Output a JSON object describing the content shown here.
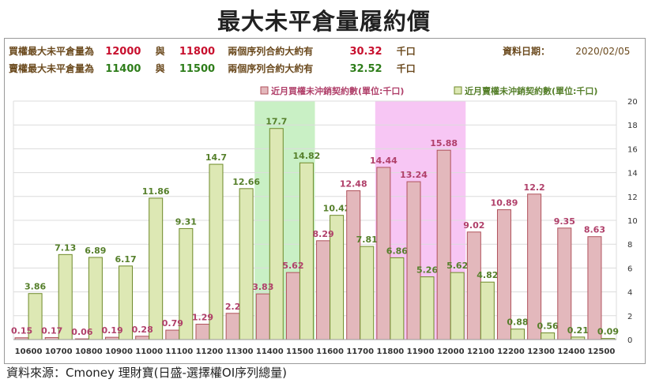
{
  "page": {
    "title": "最大未平倉量履約價",
    "source": "資料來源：Cmoney 理財寶(日盛-選擇權OI序列總量)"
  },
  "info": {
    "call_label": "買權最大未平倉量為",
    "call_strike_1": "12000",
    "call_and": "與",
    "call_strike_2": "11800",
    "call_desc": "兩個序列合約大約有",
    "call_value": "30.32",
    "call_unit": "千口",
    "put_label": "賣權最大未平倉量為",
    "put_strike_1": "11400",
    "put_and": "與",
    "put_strike_2": "11500",
    "put_desc": "兩個序列合約大約有",
    "put_value": "32.52",
    "put_unit": "千口",
    "date_label": "資料日期：",
    "date_value": "2020/02/05"
  },
  "colors": {
    "call_fill": "#E3B8BC",
    "call_stroke": "#B0525C",
    "put_fill": "#DDE8B4",
    "put_stroke": "#6E8A2A",
    "call_text": "#B0406A",
    "put_text": "#557F2A",
    "highlight_green": "#C9F0C5",
    "highlight_pink": "#F7C6F4",
    "red_text": "#C8102E",
    "green_text": "#2E7D1A",
    "brown_text": "#6B4A1E"
  },
  "chart_data": {
    "type": "bar",
    "categories": [
      "10600",
      "10700",
      "10800",
      "10900",
      "11000",
      "11100",
      "11200",
      "11300",
      "11400",
      "11500",
      "11600",
      "11700",
      "11800",
      "11900",
      "12000",
      "12100",
      "12200",
      "12300",
      "12400",
      "12500"
    ],
    "series": [
      {
        "name": "近月買權未沖銷契約數(單位:千口)",
        "values": [
          0.15,
          0.17,
          0.06,
          0.19,
          0.28,
          0.79,
          1.29,
          2.2,
          3.83,
          5.62,
          8.29,
          12.48,
          14.44,
          13.24,
          15.88,
          9.02,
          10.89,
          12.2,
          9.35,
          8.63
        ]
      },
      {
        "name": "近月賣權未沖銷契約數(單位:千口)",
        "values": [
          3.86,
          7.13,
          6.89,
          6.17,
          11.86,
          9.31,
          14.7,
          12.66,
          17.7,
          14.82,
          10.42,
          7.81,
          6.86,
          5.26,
          5.62,
          4.82,
          0.88,
          0.56,
          0.21,
          0.09
        ]
      }
    ],
    "value_labels": {
      "call": [
        "0.15",
        "0.17",
        "0.06",
        "0.19",
        "0.28",
        "0.79",
        "1.29",
        "2.2",
        "3.83",
        "5.62",
        "8.29",
        "12.48",
        "14.44",
        "13.24",
        "15.88",
        "9.02",
        "10.89",
        "12.2",
        "9.35",
        "8.63"
      ],
      "put": [
        "3.86",
        "7.13",
        "6.89",
        "6.17",
        "11.86",
        "9.31",
        "14.7",
        "12.66",
        "17.7",
        "14.82",
        "10.42",
        "7.81",
        "6.86",
        "5.26",
        "5.62",
        "4.82",
        "0.88",
        "0.56",
        "0.21",
        "0.09"
      ]
    },
    "yticks": [
      "0",
      "2",
      "4",
      "6",
      "8",
      "10",
      "12",
      "14",
      "16",
      "18",
      "20"
    ],
    "ylim": [
      0,
      20
    ],
    "highlight_green": [
      "11400",
      "11500"
    ],
    "highlight_pink": [
      "11800",
      "12000"
    ],
    "legend_position": "top-right",
    "grid": true
  }
}
